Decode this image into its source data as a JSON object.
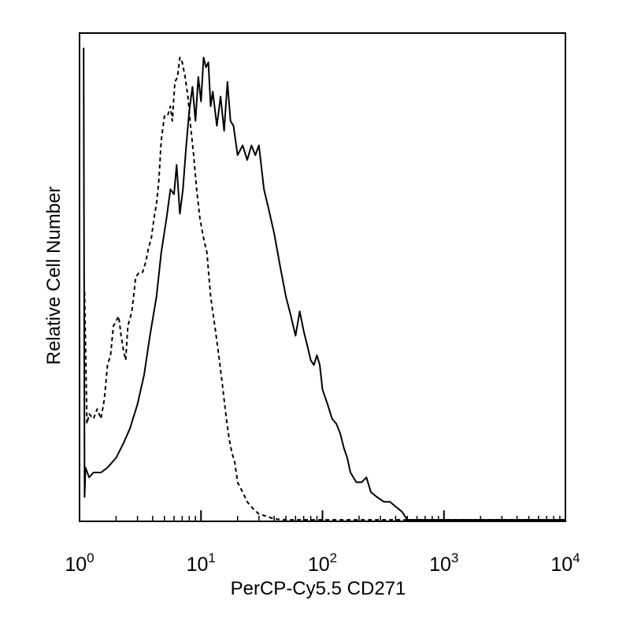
{
  "chart_data": {
    "type": "line",
    "title": "",
    "xlabel": "PerCP-Cy5.5 CD271",
    "ylabel": "Relative Cell Number",
    "x_scale": "log",
    "xlim": [
      1,
      10000
    ],
    "ylim": [
      0,
      100
    ],
    "grid": false,
    "legend": "none",
    "x_ticks": [
      {
        "value": 1,
        "base": "10",
        "exp": "0"
      },
      {
        "value": 10,
        "base": "10",
        "exp": "1"
      },
      {
        "value": 100,
        "base": "10",
        "exp": "2"
      },
      {
        "value": 1000,
        "base": "10",
        "exp": "3"
      },
      {
        "value": 10000,
        "base": "10",
        "exp": "4"
      }
    ],
    "series": [
      {
        "style": "solid",
        "color": "#000000",
        "points": [
          [
            1.08,
            97
          ],
          [
            1.1,
            5
          ],
          [
            1.12,
            11
          ],
          [
            1.2,
            9
          ],
          [
            1.3,
            10
          ],
          [
            1.5,
            10
          ],
          [
            1.7,
            11
          ],
          [
            2.0,
            13
          ],
          [
            2.3,
            16
          ],
          [
            2.6,
            19
          ],
          [
            3.0,
            24
          ],
          [
            3.4,
            30
          ],
          [
            3.8,
            38
          ],
          [
            4.3,
            46
          ],
          [
            4.7,
            55
          ],
          [
            5.2,
            62
          ],
          [
            5.6,
            68
          ],
          [
            6.0,
            67
          ],
          [
            6.3,
            73
          ],
          [
            6.7,
            63
          ],
          [
            7.1,
            68
          ],
          [
            7.5,
            76
          ],
          [
            8.0,
            84
          ],
          [
            8.5,
            89
          ],
          [
            9.0,
            82
          ],
          [
            9.5,
            91
          ],
          [
            10.0,
            86
          ],
          [
            10.5,
            95
          ],
          [
            11.0,
            93
          ],
          [
            11.5,
            94
          ],
          [
            12.0,
            85
          ],
          [
            12.5,
            88
          ],
          [
            13.5,
            81
          ],
          [
            14.5,
            87
          ],
          [
            15.5,
            80
          ],
          [
            16.5,
            90
          ],
          [
            17.5,
            82
          ],
          [
            18.5,
            81
          ],
          [
            20.0,
            75
          ],
          [
            22.0,
            77
          ],
          [
            24.0,
            74
          ],
          [
            26.0,
            77
          ],
          [
            28.0,
            75
          ],
          [
            30.0,
            77
          ],
          [
            33.0,
            68
          ],
          [
            36.0,
            64
          ],
          [
            40.0,
            59
          ],
          [
            45.0,
            52
          ],
          [
            50.0,
            46
          ],
          [
            55.0,
            42
          ],
          [
            60.0,
            38
          ],
          [
            65.0,
            43
          ],
          [
            70.0,
            39
          ],
          [
            75.0,
            36
          ],
          [
            80.0,
            33
          ],
          [
            85.0,
            32
          ],
          [
            90.0,
            34
          ],
          [
            95.0,
            32
          ],
          [
            100.0,
            27
          ],
          [
            110.0,
            24
          ],
          [
            120.0,
            21
          ],
          [
            130.0,
            20
          ],
          [
            140.0,
            18
          ],
          [
            150.0,
            15
          ],
          [
            160.0,
            13
          ],
          [
            170.0,
            10
          ],
          [
            190.0,
            8
          ],
          [
            210.0,
            8
          ],
          [
            230.0,
            9
          ],
          [
            250.0,
            6
          ],
          [
            280.0,
            5
          ],
          [
            320.0,
            4
          ],
          [
            360.0,
            4
          ],
          [
            400.0,
            3
          ],
          [
            450.0,
            2
          ],
          [
            500.0,
            0.3
          ],
          [
            1000.0,
            0.3
          ],
          [
            5000.0,
            0.3
          ],
          [
            10000.0,
            0.3
          ]
        ]
      },
      {
        "style": "dashed",
        "color": "#000000",
        "points": [
          [
            1.1,
            47
          ],
          [
            1.15,
            20
          ],
          [
            1.2,
            22
          ],
          [
            1.3,
            21
          ],
          [
            1.4,
            23
          ],
          [
            1.5,
            21
          ],
          [
            1.6,
            25
          ],
          [
            1.7,
            32
          ],
          [
            1.8,
            34
          ],
          [
            1.9,
            40
          ],
          [
            2.0,
            41
          ],
          [
            2.1,
            42
          ],
          [
            2.2,
            38
          ],
          [
            2.3,
            35
          ],
          [
            2.4,
            33
          ],
          [
            2.5,
            40
          ],
          [
            2.7,
            43
          ],
          [
            2.9,
            50
          ],
          [
            3.1,
            51
          ],
          [
            3.3,
            51
          ],
          [
            3.5,
            53
          ],
          [
            3.7,
            56
          ],
          [
            3.9,
            58
          ],
          [
            4.1,
            62
          ],
          [
            4.3,
            65
          ],
          [
            4.5,
            70
          ],
          [
            4.7,
            78
          ],
          [
            5.0,
            83
          ],
          [
            5.3,
            83
          ],
          [
            5.6,
            85
          ],
          [
            5.8,
            82
          ],
          [
            6.1,
            90
          ],
          [
            6.4,
            91
          ],
          [
            6.7,
            95
          ],
          [
            7.0,
            94
          ],
          [
            7.4,
            91
          ],
          [
            7.8,
            87
          ],
          [
            8.2,
            81
          ],
          [
            8.7,
            75
          ],
          [
            9.2,
            68
          ],
          [
            9.8,
            62
          ],
          [
            10.5,
            58
          ],
          [
            11.2,
            55
          ],
          [
            12.0,
            46
          ],
          [
            13.0,
            40
          ],
          [
            14.0,
            34
          ],
          [
            15.0,
            28
          ],
          [
            16.0,
            22
          ],
          [
            17.0,
            17
          ],
          [
            18.0,
            14
          ],
          [
            19.0,
            12
          ],
          [
            20.0,
            8
          ],
          [
            22.0,
            6
          ],
          [
            24.0,
            4
          ],
          [
            27.0,
            2.5
          ],
          [
            30.0,
            1.5
          ],
          [
            35.0,
            1
          ],
          [
            40.0,
            0.5
          ],
          [
            50.0,
            0.3
          ],
          [
            200.0,
            0.3
          ],
          [
            10000.0,
            0.3
          ]
        ]
      }
    ]
  }
}
